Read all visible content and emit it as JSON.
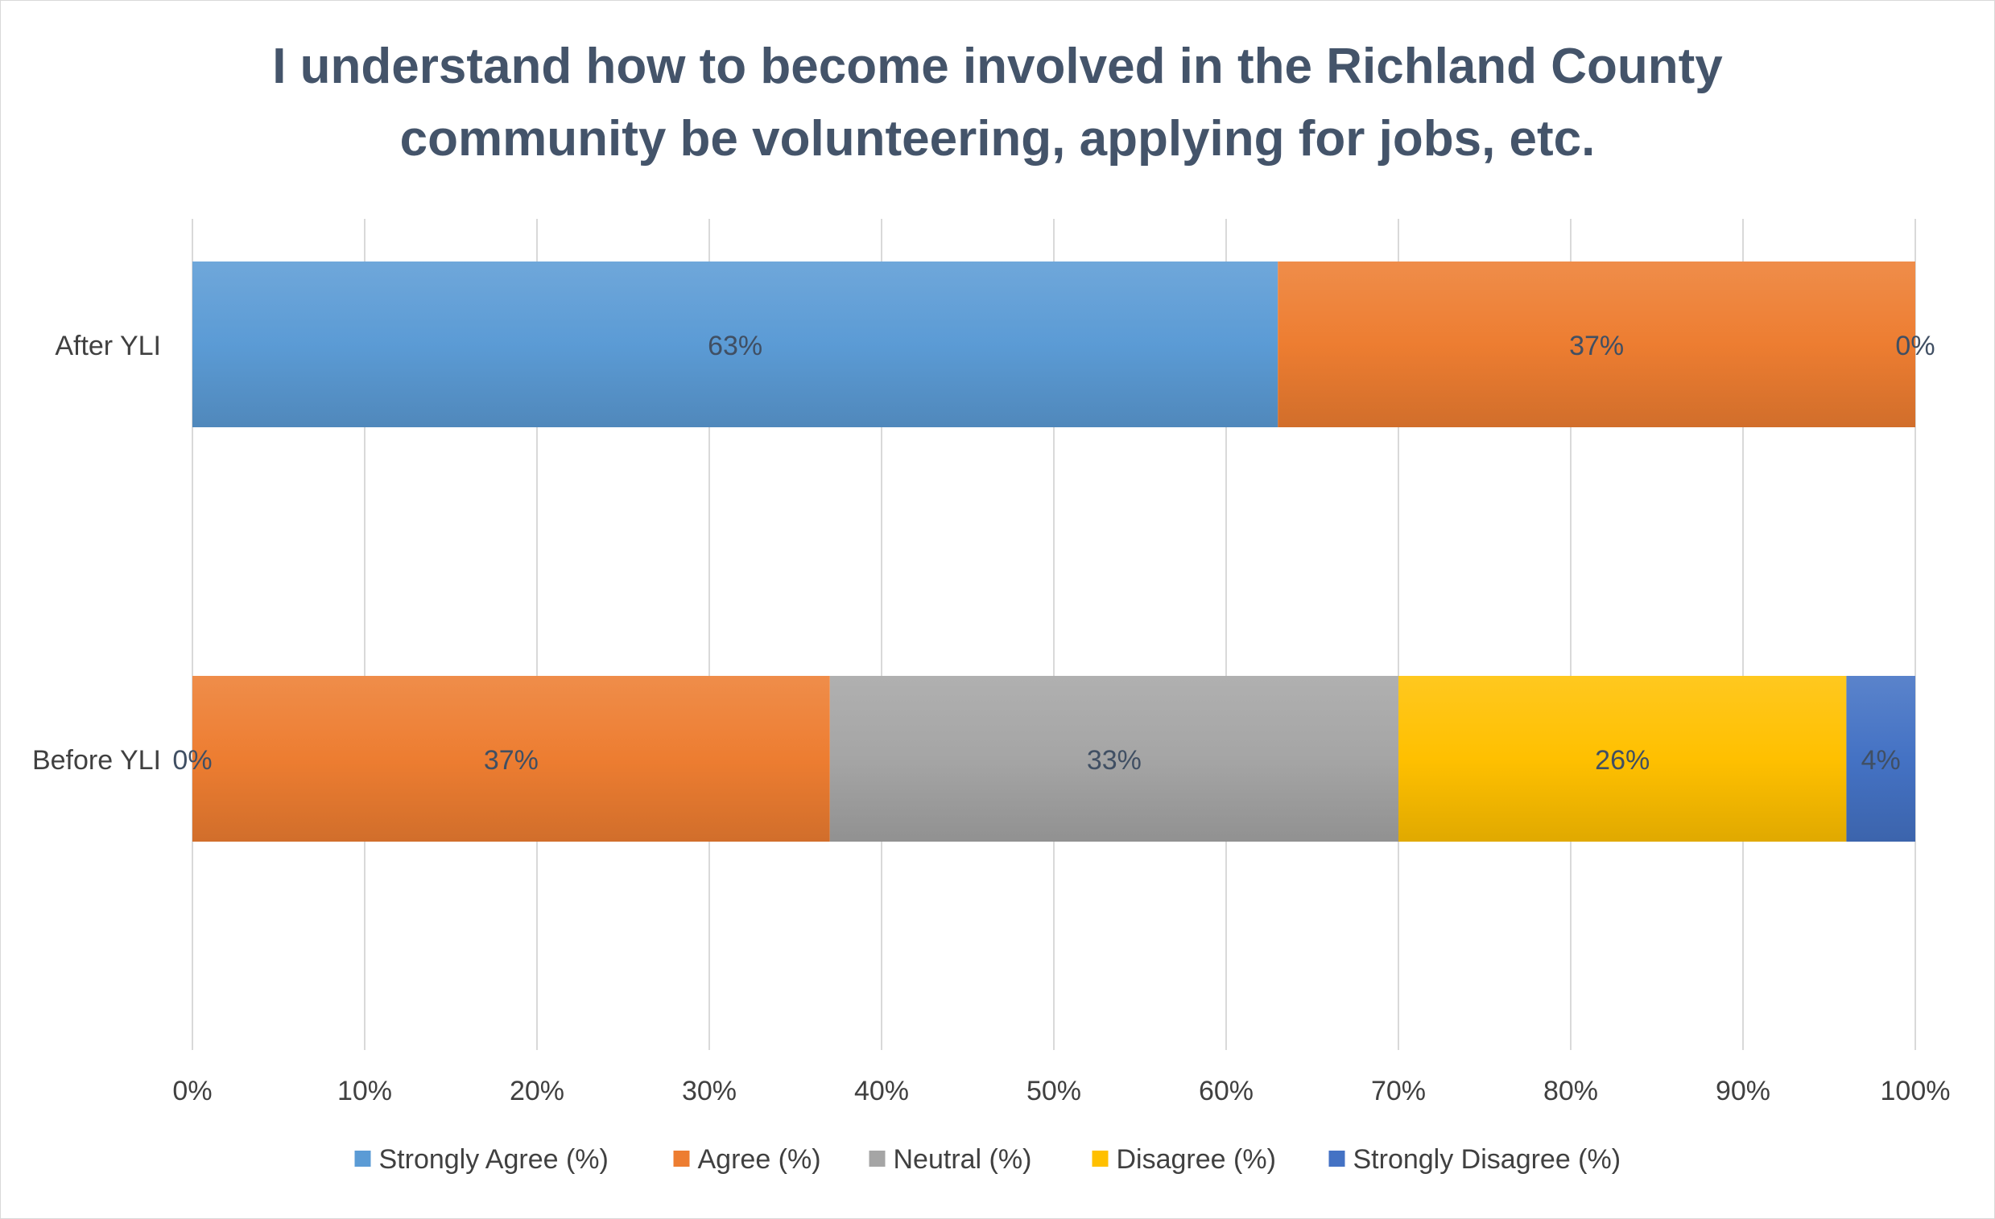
{
  "chart_data": {
    "type": "bar",
    "orientation": "horizontal",
    "stacked": "percent",
    "title": "I understand how to become involved in the Richland County\ncommunity be volunteering, applying for jobs, etc.",
    "categories": [
      "After YLI",
      "Before YLI"
    ],
    "series": [
      {
        "name": "Strongly Agree (%)",
        "values": [
          63,
          0
        ],
        "labels": [
          "63%",
          "0%"
        ],
        "color": "#5b9bd5"
      },
      {
        "name": "Agree (%)",
        "values": [
          37,
          37
        ],
        "labels": [
          "37%",
          "37%"
        ],
        "color": "#ed7d31"
      },
      {
        "name": "Neutral (%)",
        "values": [
          0,
          33
        ],
        "labels": [
          "0%",
          "33%"
        ],
        "color": "#a5a5a5"
      },
      {
        "name": "Disagree (%)",
        "values": [
          0,
          26
        ],
        "labels": [
          "",
          "26%"
        ],
        "color": "#ffc000"
      },
      {
        "name": "Strongly Disagree (%)",
        "values": [
          0,
          4
        ],
        "labels": [
          "",
          "4%"
        ],
        "color": "#4472c4"
      }
    ],
    "xlim": [
      0,
      100
    ],
    "xticks": [
      "0%",
      "10%",
      "20%",
      "30%",
      "40%",
      "50%",
      "60%",
      "70%",
      "80%",
      "90%",
      "100%"
    ],
    "grid": true,
    "legend": "bottom"
  }
}
